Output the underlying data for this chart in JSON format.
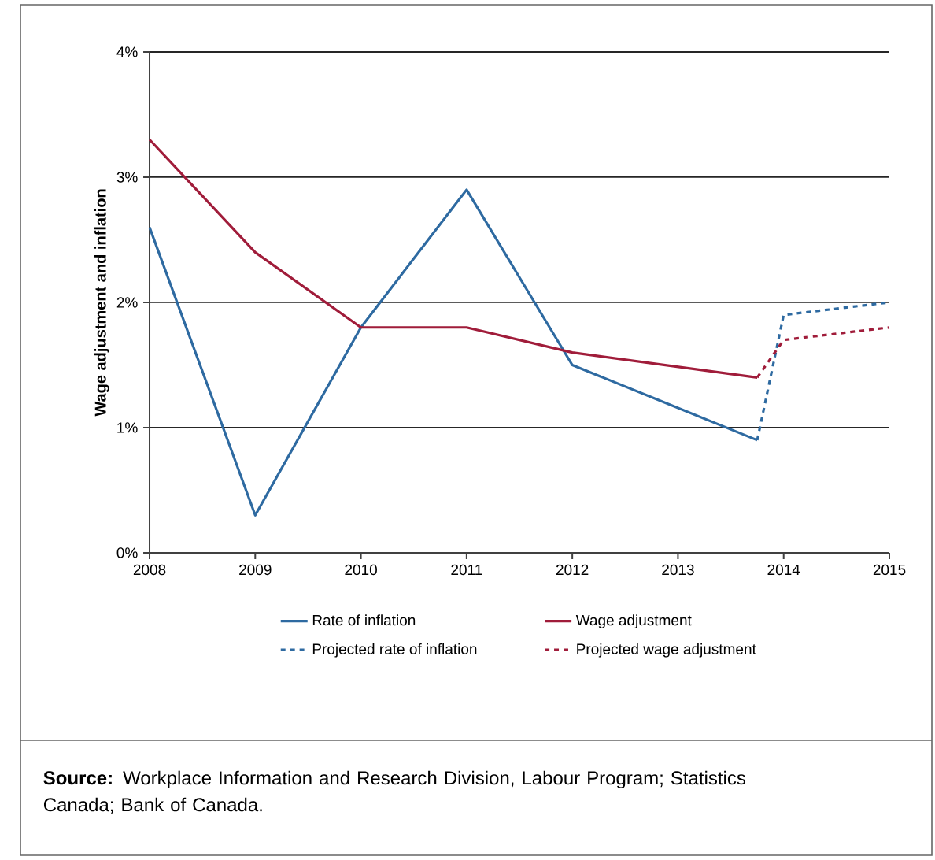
{
  "chart_data": {
    "type": "line",
    "ylabel": "Wage adjustment and inflation",
    "xlim": [
      2008,
      2015
    ],
    "xticks": [
      2008,
      2009,
      2010,
      2011,
      2012,
      2013,
      2014,
      2015
    ],
    "ylim": [
      0,
      4
    ],
    "yticks": [
      {
        "value": 0,
        "label": "0%"
      },
      {
        "value": 1,
        "label": "1%"
      },
      {
        "value": 2,
        "label": "2%"
      },
      {
        "value": 3,
        "label": "3%"
      },
      {
        "value": 4,
        "label": "4%"
      }
    ],
    "grid": "y",
    "legend": "bottom",
    "series": [
      {
        "name": "Rate of inflation",
        "color": "#2e6aa1",
        "line_style": "solid",
        "x": [
          2008,
          2009,
          2010,
          2011,
          2012,
          2013.75
        ],
        "values": [
          2.6,
          0.3,
          1.8,
          2.9,
          1.5,
          0.9
        ]
      },
      {
        "name": "Wage adjustment",
        "color": "#a01c3a",
        "line_style": "solid",
        "x": [
          2008,
          2009,
          2010,
          2011,
          2012,
          2013.75
        ],
        "values": [
          3.3,
          2.4,
          1.8,
          1.8,
          1.6,
          1.4
        ]
      },
      {
        "name": "Projected rate of inflation",
        "color": "#2e6aa1",
        "line_style": "dashed",
        "x": [
          2013.75,
          2014,
          2015
        ],
        "values": [
          0.9,
          1.9,
          2.0
        ]
      },
      {
        "name": "Projected wage adjustment",
        "color": "#a01c3a",
        "line_style": "dashed",
        "x": [
          2013.75,
          2014,
          2015
        ],
        "values": [
          1.4,
          1.7,
          1.8
        ]
      }
    ],
    "annotations": [
      "**Source:** Workplace Information and Research Division, Labour Program; Statistics Canada; Bank of Canada."
    ]
  }
}
